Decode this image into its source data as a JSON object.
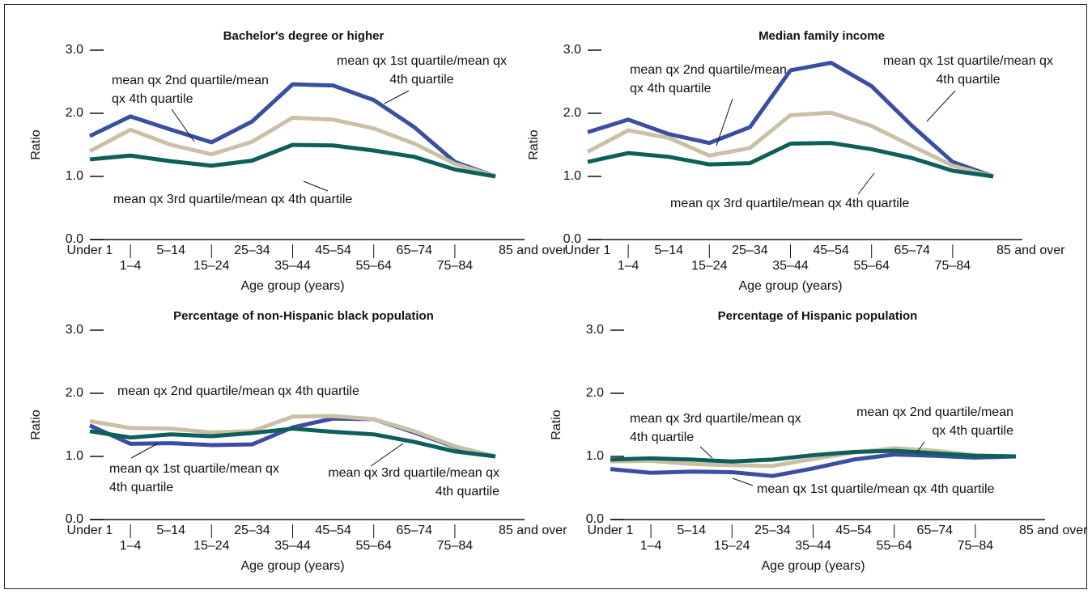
{
  "chart_data": [
    {
      "type": "line",
      "title": "Bachelor's degree or higher",
      "x_label": "Age group (years)",
      "y_label": "Ratio",
      "categories": [
        "Under 1",
        "1–4",
        "5–14",
        "15–24",
        "25–34",
        "35–44",
        "45–54",
        "55–64",
        "65–74",
        "75–84",
        "85 and over"
      ],
      "ylim": [
        0,
        3
      ],
      "yticks": [
        {
          "value": 0,
          "label": "0.0"
        },
        {
          "value": 1,
          "label": "1.0"
        },
        {
          "value": 2,
          "label": "2.0"
        },
        {
          "value": 3,
          "label": "3.0"
        }
      ],
      "series": [
        {
          "name": "mean qx 1st quartile/mean qx 4th quartile",
          "color": "#3b4ea2",
          "values": [
            1.64,
            1.95,
            1.74,
            1.54,
            1.87,
            2.46,
            2.44,
            2.21,
            1.78,
            1.23,
            1.0
          ]
        },
        {
          "name": "mean qx 2nd quartile/mean qx 4th quartile",
          "color": "#c9c0a6",
          "values": [
            1.4,
            1.74,
            1.5,
            1.35,
            1.55,
            1.93,
            1.9,
            1.76,
            1.52,
            1.2,
            1.0
          ]
        },
        {
          "name": "mean qx 3rd quartile/mean qx 4th quartile",
          "color": "#0d5f5a",
          "values": [
            1.27,
            1.33,
            1.24,
            1.17,
            1.25,
            1.5,
            1.49,
            1.41,
            1.31,
            1.11,
            1.0
          ]
        }
      ]
    },
    {
      "type": "line",
      "title": "Median family income",
      "x_label": "Age group (years)",
      "y_label": "Ratio",
      "categories": [
        "Under 1",
        "1–4",
        "5–14",
        "15–24",
        "25–34",
        "35–44",
        "45–54",
        "55–64",
        "65–74",
        "75–84",
        "85 and over"
      ],
      "ylim": [
        0,
        3
      ],
      "yticks": [
        {
          "value": 0,
          "label": "0.0"
        },
        {
          "value": 1,
          "label": "1.0"
        },
        {
          "value": 2,
          "label": "2.0"
        },
        {
          "value": 3,
          "label": "3.0"
        }
      ],
      "series": [
        {
          "name": "mean qx 1st quartile/mean qx 4th quartile",
          "color": "#3b4ea2",
          "values": [
            1.7,
            1.9,
            1.67,
            1.53,
            1.78,
            2.68,
            2.8,
            2.43,
            1.8,
            1.23,
            1.0
          ]
        },
        {
          "name": "mean qx 2nd quartile/mean qx 4th quartile",
          "color": "#c9c0a6",
          "values": [
            1.39,
            1.73,
            1.61,
            1.33,
            1.45,
            1.97,
            2.01,
            1.8,
            1.48,
            1.17,
            1.0
          ]
        },
        {
          "name": "mean qx 3rd quartile/mean qx 4th quartile",
          "color": "#0d5f5a",
          "values": [
            1.23,
            1.37,
            1.31,
            1.19,
            1.21,
            1.52,
            1.53,
            1.43,
            1.29,
            1.09,
            1.0
          ]
        }
      ]
    },
    {
      "type": "line",
      "title": "Percentage of non-Hispanic black population",
      "x_label": "Age group (years)",
      "y_label": "Ratio",
      "categories": [
        "Under 1",
        "1–4",
        "5–14",
        "15–24",
        "25–34",
        "35–44",
        "45–54",
        "55–64",
        "65–74",
        "75–84",
        "85 and over"
      ],
      "ylim": [
        0,
        3
      ],
      "yticks": [
        {
          "value": 0,
          "label": "0.0"
        },
        {
          "value": 1,
          "label": "1.0"
        },
        {
          "value": 2,
          "label": "2.0"
        },
        {
          "value": 3,
          "label": "3.0"
        }
      ],
      "series": [
        {
          "name": "mean qx 1st quartile/mean qx 4th quartile",
          "color": "#3b4ea2",
          "values": [
            1.49,
            1.2,
            1.21,
            1.18,
            1.19,
            1.46,
            1.6,
            1.59,
            1.38,
            1.15,
            1.0
          ]
        },
        {
          "name": "mean qx 2nd quartile/mean qx 4th quartile",
          "color": "#c9c0a6",
          "values": [
            1.56,
            1.45,
            1.44,
            1.38,
            1.4,
            1.63,
            1.64,
            1.59,
            1.4,
            1.16,
            1.0
          ]
        },
        {
          "name": "mean qx 3rd quartile/mean qx 4th quartile",
          "color": "#0d5f5a",
          "values": [
            1.4,
            1.3,
            1.35,
            1.32,
            1.37,
            1.44,
            1.39,
            1.35,
            1.23,
            1.08,
            1.0
          ]
        }
      ]
    },
    {
      "type": "line",
      "title": "Percentage of Hispanic population",
      "x_label": "Age group (years)",
      "y_label": "Ratio",
      "categories": [
        "Under 1",
        "1–4",
        "5–14",
        "15–24",
        "25–34",
        "35–44",
        "45–54",
        "55–64",
        "65–74",
        "75–84",
        "85 and over"
      ],
      "ylim": [
        0,
        3
      ],
      "yticks": [
        {
          "value": 0,
          "label": "0.0"
        },
        {
          "value": 1,
          "label": "1.0"
        },
        {
          "value": 2,
          "label": "2.0"
        },
        {
          "value": 3,
          "label": "3.0"
        }
      ],
      "series": [
        {
          "name": "mean qx 1st quartile/mean qx 4th quartile",
          "color": "#3b4ea2",
          "values": [
            0.8,
            0.74,
            0.76,
            0.75,
            0.69,
            0.81,
            0.95,
            1.03,
            1.01,
            0.98,
            1.0
          ]
        },
        {
          "name": "mean qx 2nd quartile/mean qx 4th quartile",
          "color": "#c9c0a6",
          "values": [
            0.92,
            0.93,
            0.88,
            0.86,
            0.85,
            0.96,
            1.06,
            1.13,
            1.09,
            1.02,
            1.0
          ]
        },
        {
          "name": "mean qx 3rd quartile/mean qx 4th quartile",
          "color": "#0d5f5a",
          "values": [
            0.95,
            0.97,
            0.95,
            0.92,
            0.95,
            1.02,
            1.07,
            1.09,
            1.05,
            1.01,
            1.0
          ]
        }
      ]
    }
  ]
}
